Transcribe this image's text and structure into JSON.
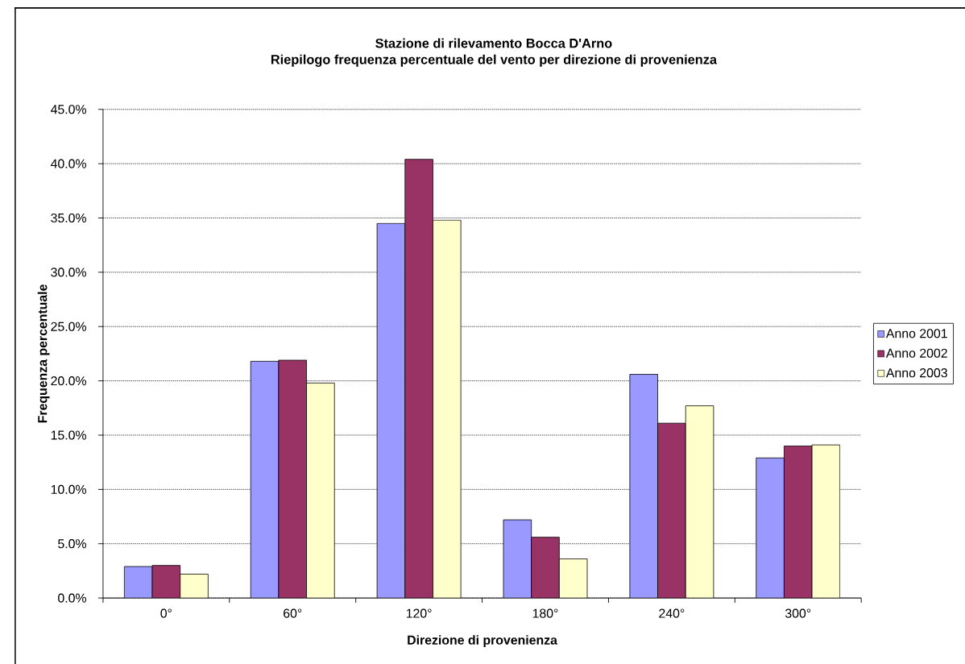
{
  "chart_data": {
    "type": "bar",
    "title": "Stazione di rilevamento Bocca D'Arno",
    "subtitle": "Riepilogo frequenza percentuale del vento per direzione di provenienza",
    "xlabel": "Direzione di provenienza",
    "ylabel": "Frequenza percentuale",
    "categories": [
      "0°",
      "60°",
      "120°",
      "180°",
      "240°",
      "300°"
    ],
    "series": [
      {
        "name": "Anno 2001",
        "color": "#9999ff",
        "values": [
          2.9,
          21.8,
          34.5,
          7.2,
          20.6,
          12.9
        ]
      },
      {
        "name": "Anno 2002",
        "color": "#993366",
        "values": [
          3.0,
          21.9,
          40.4,
          5.6,
          16.1,
          14.0
        ]
      },
      {
        "name": "Anno 2003",
        "color": "#ffffcc",
        "values": [
          2.2,
          19.8,
          34.8,
          3.6,
          17.7,
          14.1
        ]
      }
    ],
    "ylim": [
      0,
      45
    ],
    "yticks": [
      {
        "value": 0,
        "label": "0.0%"
      },
      {
        "value": 5,
        "label": "5.0%"
      },
      {
        "value": 10,
        "label": "10.0%"
      },
      {
        "value": 15,
        "label": "15.0%"
      },
      {
        "value": 20,
        "label": "20.0%"
      },
      {
        "value": 25,
        "label": "25.0%"
      },
      {
        "value": 30,
        "label": "30.0%"
      },
      {
        "value": 35,
        "label": "35.0%"
      },
      {
        "value": 40,
        "label": "40.0%"
      },
      {
        "value": 45,
        "label": "45.0%"
      }
    ],
    "grid": "y",
    "legend": "right"
  }
}
